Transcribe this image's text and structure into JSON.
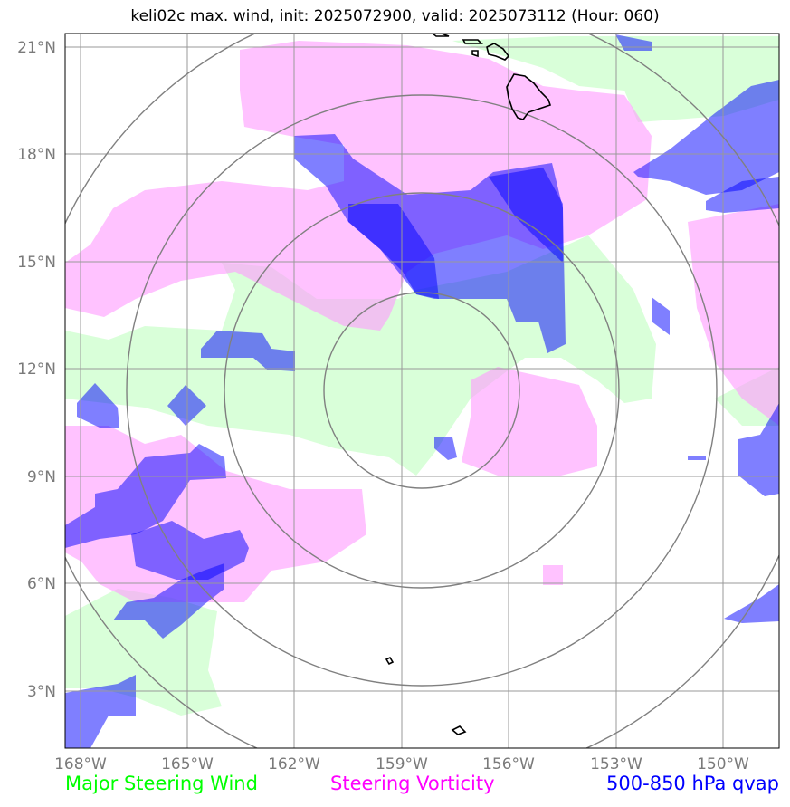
{
  "title": "keli02c max. wind, init: 2025072900, valid: 2025073112 (Hour: 060)",
  "lon_labels": [
    "168°W",
    "165°W",
    "162°W",
    "159°W",
    "156°W",
    "153°W",
    "150°W"
  ],
  "lat_labels": [
    "21°N",
    "18°N",
    "15°N",
    "12°N",
    "9°N",
    "6°N",
    "3°N"
  ],
  "legend": {
    "wind": "Major Steering Wind",
    "vorticity": "Steering Vorticity",
    "qvap": "500-850 hPa qvap"
  },
  "colors": {
    "wind_fill": "#ccffcc",
    "vorticity_fill": "#ff99ff",
    "qvap_fill": "#0000ff",
    "gridlines": "#999999",
    "range_rings": "#808080",
    "coastline": "#000000"
  },
  "map": {
    "lon_range": [
      "168.4°W",
      "148.4°W"
    ],
    "lat_range": [
      "1.4°N",
      "21.3°N"
    ],
    "center": {
      "lon": "158.5°W",
      "lat": "11.5°N"
    },
    "range_ring_count": 4
  }
}
